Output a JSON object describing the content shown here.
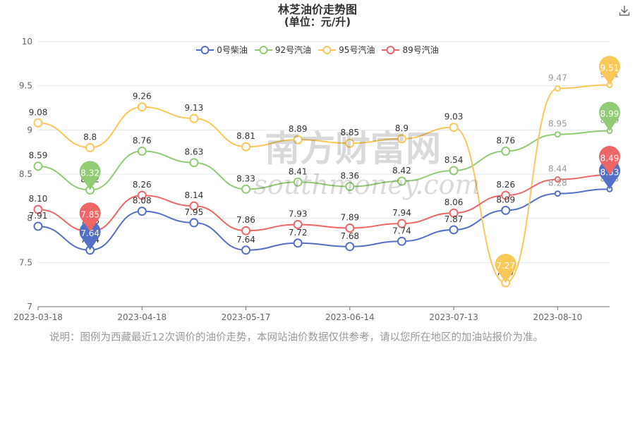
{
  "title": "林芝油价走势图",
  "subtitle": "(单位：元/升)",
  "note": "说明：图例为西藏最近12次调价的油价走势，本网站油价数据仅供参考，请以您所在地区的加油站报价为准。",
  "watermark": {
    "cn": "南方财富网",
    "en": "southmoney.com"
  },
  "icons": {
    "download": "download-icon"
  },
  "chart_data": {
    "type": "line",
    "x_tick_labels": [
      "2023-03-18",
      "2023-04-18",
      "2023-05-17",
      "2023-06-14",
      "2023-07-13",
      "2023-08-10"
    ],
    "ylim": [
      7,
      10
    ],
    "y_ticks": [
      7,
      7.5,
      8,
      8.5,
      9,
      9.5,
      10
    ],
    "y_tick_labels": [
      "7",
      "7.5",
      "8",
      "8.5",
      "9",
      "9.5",
      "10"
    ],
    "grid": true,
    "legend_position": "top-center",
    "series": [
      {
        "name": "0号柴油",
        "color": "#5470c6",
        "values": [
          7.91,
          7.64,
          8.08,
          7.95,
          7.64,
          7.72,
          7.68,
          7.74,
          7.87,
          8.09,
          8.28,
          8.33
        ],
        "labels": [
          "7.91",
          "7.64",
          "8.08",
          "7.95",
          "7.64",
          "7.72",
          "7.68",
          "7.74",
          "7.87",
          "8.09",
          "8.28",
          "8.33"
        ],
        "min_index": 1,
        "max_index": 11
      },
      {
        "name": "92号汽油",
        "color": "#91cc75",
        "values": [
          8.59,
          8.32,
          8.76,
          8.63,
          8.33,
          8.41,
          8.36,
          8.42,
          8.54,
          8.76,
          8.95,
          8.99
        ],
        "labels": [
          "8.59",
          "8.32",
          "8.76",
          "8.63",
          "8.33",
          "8.41",
          "8.36",
          "8.42",
          "8.54",
          "8.76",
          "8.95",
          "8.99"
        ],
        "min_index": 1,
        "max_index": 11
      },
      {
        "name": "95号汽油",
        "color": "#fac858",
        "values": [
          9.08,
          8.8,
          9.26,
          9.13,
          8.81,
          8.89,
          8.85,
          8.9,
          9.03,
          7.27,
          9.47,
          9.51
        ],
        "labels": [
          "9.08",
          "8.8",
          "9.26",
          "9.13",
          "8.81",
          "8.89",
          "8.85",
          "8.9",
          "9.03",
          "7.27",
          "9.47",
          "9.51"
        ],
        "min_index": 9,
        "max_index": 11
      },
      {
        "name": "89号汽油",
        "color": "#ee6666",
        "values": [
          8.1,
          7.85,
          8.26,
          8.14,
          7.86,
          7.93,
          7.89,
          7.94,
          8.06,
          8.26,
          8.44,
          8.49
        ],
        "labels": [
          "8.10",
          "7.85",
          "8.26",
          "8.14",
          "7.86",
          "7.93",
          "7.89",
          "7.94",
          "8.06",
          "8.26",
          "8.44",
          "8.49"
        ],
        "min_index": 1,
        "max_index": 11
      }
    ]
  }
}
